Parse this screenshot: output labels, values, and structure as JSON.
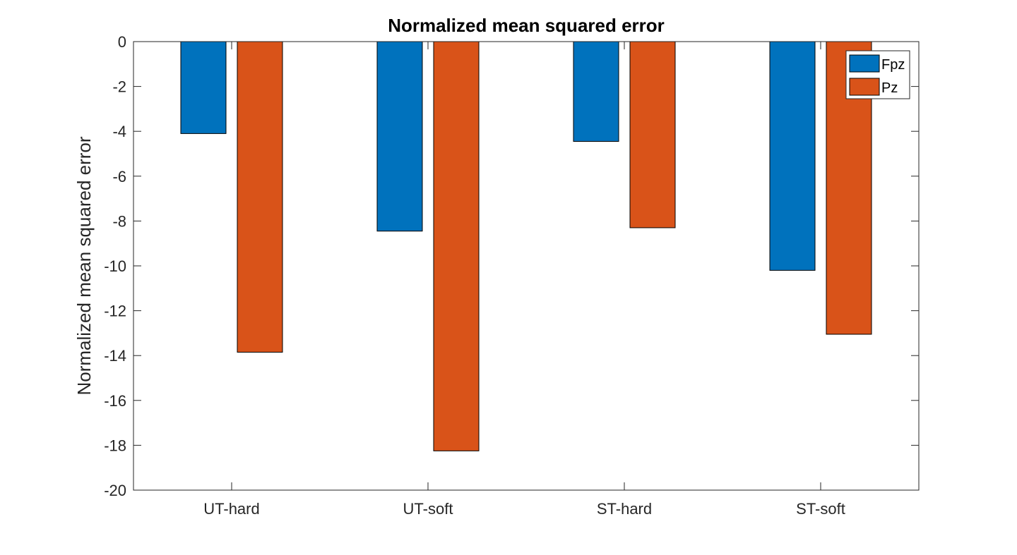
{
  "chart_data": {
    "type": "bar",
    "title": "Normalized mean squared error",
    "xlabel": "",
    "ylabel": "Normalized mean squared error",
    "categories": [
      "UT-hard",
      "UT-soft",
      "ST-hard",
      "ST-soft"
    ],
    "series": [
      {
        "name": "Fpz",
        "color": "#0072BD",
        "values": [
          -4.1,
          -8.45,
          -4.45,
          -10.2
        ]
      },
      {
        "name": "Pz",
        "color": "#D95319",
        "values": [
          -13.85,
          -18.25,
          -8.3,
          -13.05
        ]
      }
    ],
    "ylim": [
      -20,
      0
    ],
    "yticks": [
      0,
      -2,
      -4,
      -6,
      -8,
      -10,
      -12,
      -14,
      -16,
      -18,
      -20
    ],
    "grid": false,
    "legend_position": "top-right"
  }
}
